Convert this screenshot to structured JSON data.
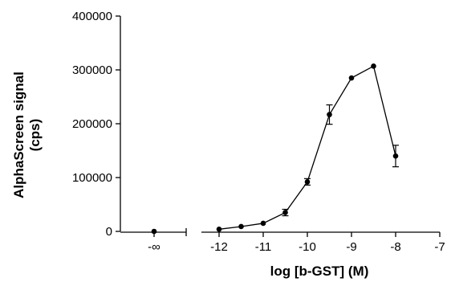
{
  "chart_data": {
    "type": "scatter",
    "xlabel": "log [b-GST] (M)",
    "ylabel_line1": "AlphaScreen signal",
    "ylabel_line2": "(cps)",
    "ylim": [
      0,
      400000
    ],
    "y_ticks": [
      0,
      100000,
      200000,
      300000,
      400000
    ],
    "y_tick_labels": [
      "0",
      "100000",
      "200000",
      "300000",
      "400000"
    ],
    "x_break_axis": {
      "label": "-∞",
      "point": {
        "y": 0,
        "error": 0
      }
    },
    "xlim": [
      -12.4,
      -7
    ],
    "x_ticks": [
      -12,
      -11,
      -10,
      -9,
      -8,
      -7
    ],
    "x_tick_labels": [
      "-12",
      "-11",
      "-10",
      "-9",
      "-8",
      "-7"
    ],
    "grid": false,
    "series": [
      {
        "x": [
          -12,
          -11.5,
          -11,
          -10.5,
          -10,
          -9.5,
          -9,
          -8.5,
          -8
        ],
        "y": [
          4000,
          9000,
          15000,
          35000,
          92000,
          217000,
          285000,
          307000,
          140000
        ],
        "error": [
          0,
          0,
          0,
          6000,
          6000,
          18000,
          0,
          0,
          20000
        ],
        "color": "#000000"
      }
    ]
  }
}
